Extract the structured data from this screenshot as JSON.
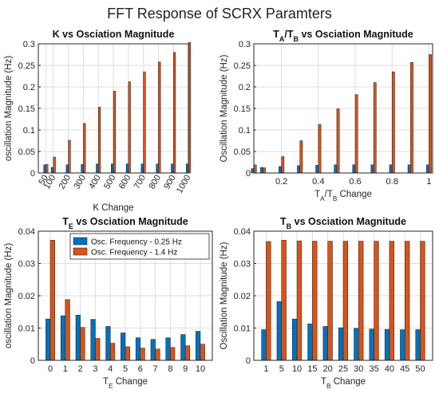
{
  "figure": {
    "suptitle": "FFT Response of SCRX Paramters"
  },
  "colors": {
    "blue": "#0072BD",
    "orange": "#D95319",
    "grid": "#dedede",
    "axis": "#262626"
  },
  "legend": {
    "entries": [
      "Osc. Frequency - 0.25 Hz",
      "Osc. Frequency - 1.4 Hz"
    ],
    "placement": "top-right of bottom-left panel"
  },
  "chart_data": [
    {
      "id": "k",
      "type": "bar",
      "title": "K vs Osciation Magnitude",
      "xlabel": "K Change",
      "ylabel": "oscillation Magnitude (Hz)",
      "x_kind": "numeric",
      "xlim": [
        0,
        1000
      ],
      "xticks": [
        50,
        100,
        200,
        300,
        400,
        500,
        600,
        700,
        800,
        900,
        1000
      ],
      "xtick_rotation": -60,
      "ylim": [
        0,
        0.3
      ],
      "yticks": [
        0,
        0.05,
        0.1,
        0.15,
        0.2,
        0.25,
        0.3
      ],
      "grid": true,
      "x": [
        50,
        100,
        200,
        300,
        400,
        500,
        600,
        700,
        800,
        900,
        1000
      ],
      "series": [
        {
          "name": "Osc. Frequency - 0.25 Hz",
          "values": [
            0.019,
            0.013,
            0.019,
            0.02,
            0.021,
            0.021,
            0.021,
            0.021,
            0.021,
            0.021,
            0.021
          ]
        },
        {
          "name": "Osc. Frequency - 1.4 Hz",
          "values": [
            0.02,
            0.037,
            0.076,
            0.115,
            0.153,
            0.19,
            0.212,
            0.235,
            0.258,
            0.28,
            0.303
          ]
        }
      ]
    },
    {
      "id": "ta",
      "type": "bar",
      "title": "T_A/T_B vs Osciation Magnitude",
      "xlabel": "T_A/T_B Change",
      "ylabel": "Oscillation Magnitude (Hz)",
      "x_kind": "numeric",
      "xlim": [
        0.05,
        1.02
      ],
      "xticks": [
        0.2,
        0.4,
        0.6,
        0.8,
        1
      ],
      "ylim": [
        0,
        0.3
      ],
      "yticks": [
        0,
        0.05,
        0.1,
        0.15,
        0.2,
        0.25,
        0.3
      ],
      "grid": true,
      "x": [
        0.05,
        0.1,
        0.2,
        0.3,
        0.4,
        0.5,
        0.6,
        0.7,
        0.8,
        0.9,
        1.0
      ],
      "series": [
        {
          "name": "Osc. Frequency - 0.25 Hz",
          "values": [
            0.01,
            0.013,
            0.015,
            0.017,
            0.018,
            0.019,
            0.019,
            0.019,
            0.019,
            0.019,
            0.019
          ]
        },
        {
          "name": "Osc. Frequency - 1.4 Hz",
          "values": [
            0.019,
            0.012,
            0.038,
            0.075,
            0.113,
            0.149,
            0.182,
            0.21,
            0.235,
            0.257,
            0.275
          ]
        }
      ]
    },
    {
      "id": "te",
      "type": "bar",
      "title": "T_E vs Osciation Magnitude",
      "xlabel": "T_E Change",
      "ylabel": "oscillation Magnitude (Hz)",
      "x_kind": "category",
      "categories": [
        "0",
        "1",
        "2",
        "3",
        "4",
        "5",
        "6",
        "7",
        "8",
        "9",
        "10"
      ],
      "ylim": [
        0,
        0.04
      ],
      "yticks": [
        0,
        0.01,
        0.02,
        0.03,
        0.04
      ],
      "grid": true,
      "series": [
        {
          "name": "Osc. Frequency - 0.25 Hz",
          "values": [
            0.0128,
            0.0138,
            0.014,
            0.0127,
            0.0105,
            0.0085,
            0.007,
            0.0065,
            0.007,
            0.008,
            0.009
          ]
        },
        {
          "name": "Osc. Frequency - 1.4 Hz",
          "values": [
            0.0372,
            0.0188,
            0.0102,
            0.0068,
            0.0053,
            0.0042,
            0.0038,
            0.0035,
            0.004,
            0.0045,
            0.005
          ]
        }
      ]
    },
    {
      "id": "tb",
      "type": "bar",
      "title": "T_B vs Osciation Magnitude",
      "xlabel": "T_B Change",
      "ylabel": "Oscillation Magnitude (Hz)",
      "x_kind": "category",
      "categories": [
        "1",
        "5",
        "10",
        "15",
        "20",
        "25",
        "30",
        "35",
        "40",
        "45",
        "50"
      ],
      "ylim": [
        0,
        0.04
      ],
      "yticks": [
        0,
        0.01,
        0.02,
        0.03,
        0.04
      ],
      "grid": true,
      "series": [
        {
          "name": "Osc. Frequency - 0.25 Hz",
          "values": [
            0.0095,
            0.0182,
            0.0128,
            0.0113,
            0.0105,
            0.0101,
            0.0099,
            0.0097,
            0.0096,
            0.0095,
            0.0095
          ]
        },
        {
          "name": "Osc. Frequency - 1.4 Hz",
          "values": [
            0.0368,
            0.0372,
            0.037,
            0.0369,
            0.0369,
            0.0369,
            0.0369,
            0.0369,
            0.0369,
            0.0369,
            0.0369
          ]
        }
      ]
    }
  ]
}
